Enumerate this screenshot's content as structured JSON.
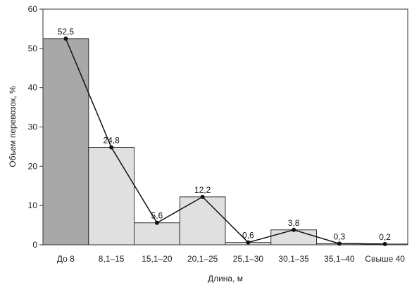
{
  "chart_data": {
    "type": "bar",
    "categories": [
      "До 8",
      "8,1–15",
      "15,1–20",
      "20,1–25",
      "25,1–30",
      "30,1–35",
      "35,1–40",
      "Свыше 40"
    ],
    "values": [
      52.5,
      24.8,
      5.6,
      12.2,
      0.6,
      3.8,
      0.3,
      0.2
    ],
    "data_labels": [
      "52,5",
      "24,8",
      "5,6",
      "12,2",
      "0,6",
      "3,8",
      "0,3",
      "0,2"
    ],
    "overlay": "line-with-markers",
    "xlabel": "Длина, м",
    "ylabel": "Объем перевозок, %",
    "ylim": [
      0,
      60
    ],
    "yticks": [
      "0",
      "10",
      "20",
      "30",
      "40",
      "50",
      "60"
    ],
    "grid": false,
    "colors": {
      "first_bar": "#a8a8a8",
      "bar": "#e0e0e0",
      "bar_stroke": "#333333",
      "line": "#111111"
    }
  }
}
